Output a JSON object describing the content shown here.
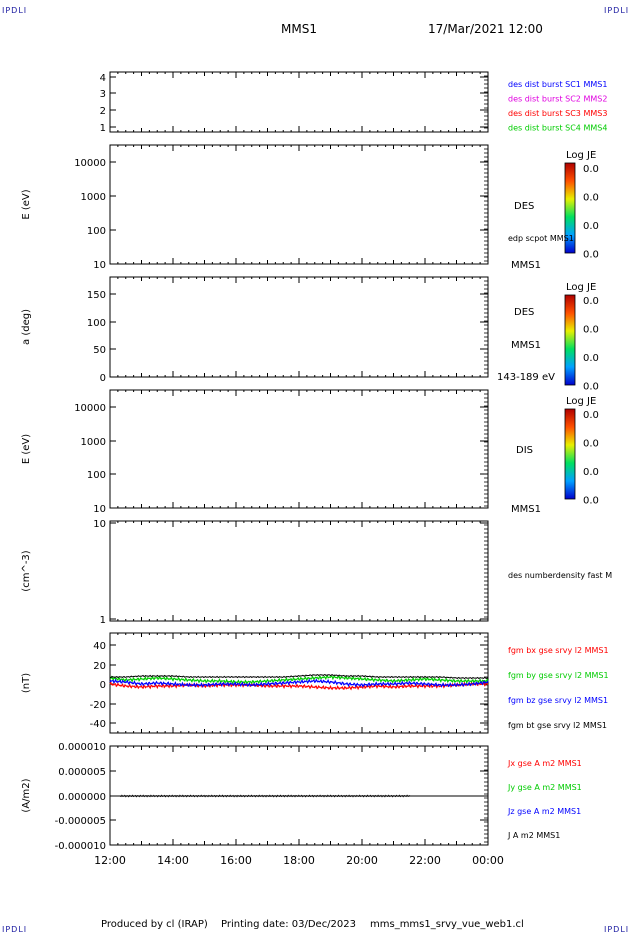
{
  "corner_label": "IPDLI",
  "header": {
    "spacecraft": "MMS1",
    "datetime": "17/Mar/2021 12:00"
  },
  "footer": {
    "produced": "Produced by cl (IRAP)",
    "printing": "Printing date: 03/Dec/2023",
    "file": "mms_mms1_srvy_vue_web1.cl"
  },
  "colors": {
    "blue": "#0000ff",
    "magenta": "#e000e0",
    "red": "#ff0000",
    "green": "#00cc00",
    "black": "#000000"
  },
  "time_axis": {
    "ticks": [
      "12:00",
      "14:00",
      "16:00",
      "18:00",
      "20:00",
      "22:00",
      "00:00"
    ]
  },
  "chart_data": [
    {
      "type": "line",
      "panel": "burst-availability",
      "yticks": [
        "1",
        "2",
        "3",
        "4"
      ],
      "ylim": [
        0.8,
        4.3
      ],
      "legend": [
        {
          "label": "des dist burst SC1 MMS1",
          "color": "#0000ff"
        },
        {
          "label": "des dist burst SC2 MMS2",
          "color": "#e000e0"
        },
        {
          "label": "des dist burst SC3 MMS3",
          "color": "#ff0000"
        },
        {
          "label": "des dist burst SC4 MMS4",
          "color": "#00cc00"
        }
      ]
    },
    {
      "type": "heatmap",
      "panel": "des-energy-spectrogram",
      "ylabel": "E (eV)",
      "scale": "log",
      "yticks": [
        "10",
        "100",
        "1000",
        "10000"
      ],
      "label": "DES",
      "note": "edp scpot MMS1",
      "bottom_label": "MMS1",
      "colorbar": {
        "title": "Log JE",
        "ticks": [
          "0.0",
          "0.0",
          "0.0",
          "0.0"
        ]
      }
    },
    {
      "type": "heatmap",
      "panel": "des-pitch-angle",
      "ylabel": "a (deg)",
      "yticks": [
        "0",
        "50",
        "100",
        "150"
      ],
      "ylim": [
        0,
        180
      ],
      "label": "DES",
      "label2": "MMS1",
      "bottom_label": "143-189 eV",
      "colorbar": {
        "title": "Log JE",
        "ticks": [
          "0.0",
          "0.0",
          "0.0",
          "0.0"
        ]
      }
    },
    {
      "type": "heatmap",
      "panel": "dis-energy-spectrogram",
      "ylabel": "E (eV)",
      "scale": "log",
      "yticks": [
        "10",
        "100",
        "1000",
        "10000"
      ],
      "label": "DIS",
      "bottom_label": "MMS1",
      "colorbar": {
        "title": "Log JE",
        "ticks": [
          "0.0",
          "0.0",
          "0.0",
          "0.0"
        ]
      }
    },
    {
      "type": "line",
      "panel": "density",
      "ylabel": "(cm^-3)",
      "scale": "log",
      "yticks": [
        "1",
        "10"
      ],
      "legend": [
        {
          "label": "des numberdensity fast M",
          "color": "#000000"
        }
      ]
    },
    {
      "type": "line",
      "panel": "magnetic-field",
      "ylabel": "(nT)",
      "yticks": [
        "-40",
        "-20",
        "0",
        "20",
        "40"
      ],
      "ylim": [
        -50,
        50
      ],
      "x_hours": [
        0,
        0.5,
        1,
        1.5,
        2,
        2.5,
        3,
        3.5,
        4,
        4.5,
        5,
        5.5,
        6,
        6.5,
        7,
        7.5,
        8,
        8.5,
        9,
        9.5,
        10,
        10.5,
        11,
        11.5,
        12
      ],
      "series": [
        {
          "name": "fgm bx gse srvy l2 MMS1",
          "color": "#ff0000",
          "values": [
            -1,
            -3,
            -4,
            -3,
            -3,
            -2,
            -3,
            -2,
            -2,
            -2,
            -3,
            -3,
            -3,
            -4,
            -5,
            -5,
            -4,
            -3,
            -4,
            -3,
            -3,
            -3,
            -2,
            -1,
            -1
          ]
        },
        {
          "name": "fgm by gse srvy l2 MMS1",
          "color": "#00cc00",
          "values": [
            5,
            3,
            4,
            5,
            4,
            3,
            2,
            2,
            1,
            1,
            2,
            3,
            4,
            5,
            6,
            5,
            4,
            3,
            2,
            3,
            4,
            3,
            2,
            2,
            2
          ]
        },
        {
          "name": "fgm bz gse srvy l2 MMS1",
          "color": "#0000ff",
          "values": [
            2,
            1,
            -1,
            0,
            -1,
            -2,
            -2,
            -1,
            -1,
            -2,
            -1,
            0,
            1,
            2,
            1,
            -1,
            -2,
            -1,
            -1,
            0,
            -1,
            -2,
            -2,
            -1,
            1
          ]
        },
        {
          "name": "fgm bt gse srvy l2 MMS1",
          "color": "#000000",
          "values": [
            6,
            6,
            7,
            7,
            7,
            6,
            6,
            6,
            6,
            6,
            6,
            6,
            7,
            8,
            8,
            7,
            7,
            6,
            6,
            6,
            6,
            6,
            5,
            5,
            5
          ]
        }
      ]
    },
    {
      "type": "line",
      "panel": "current-density",
      "ylabel": "(A/m2)",
      "yticks": [
        "-0.000010",
        "-0.000005",
        "0.000000",
        "0.000005",
        "0.000010"
      ],
      "ylim": [
        -1e-05,
        1e-05
      ],
      "series": [
        {
          "name": "Jx gse A m2 MMS1",
          "color": "#ff0000"
        },
        {
          "name": "Jy gse A m2 MMS1",
          "color": "#00cc00"
        },
        {
          "name": "Jz gse A m2 MMS1",
          "color": "#0000ff"
        },
        {
          "name": "J A m2 MMS1",
          "color": "#000000"
        }
      ]
    }
  ]
}
